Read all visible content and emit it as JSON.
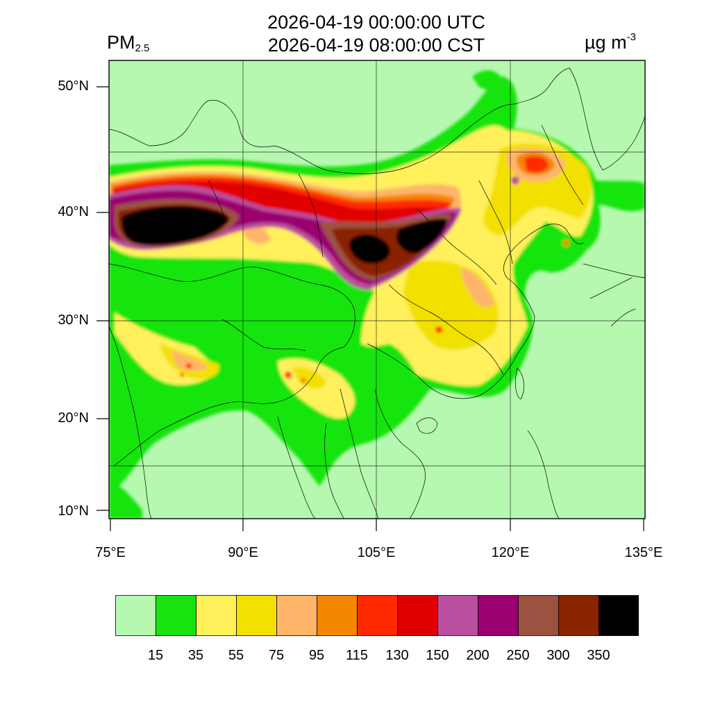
{
  "header": {
    "utc_time": "2026-04-19 00:00:00 UTC",
    "cst_time": "2026-04-19 08:00:00 CST",
    "variable_main": "PM",
    "variable_sub": "2.5",
    "unit_main": "µg m",
    "unit_sup": "-3"
  },
  "map": {
    "lat_labels": [
      "50°N",
      "40°N",
      "30°N",
      "20°N",
      "10°N"
    ],
    "lon_labels": [
      "75°E",
      "90°E",
      "105°E",
      "120°E",
      "135°E"
    ]
  },
  "legend": {
    "colors": [
      "#b6f8b0",
      "#17e40e",
      "#fff05c",
      "#f2e000",
      "#ffb569",
      "#f58600",
      "#ff2a00",
      "#e00000",
      "#bb4f9f",
      "#9a006f",
      "#9b5240",
      "#8a2400",
      "#000000"
    ],
    "labels": [
      "15",
      "35",
      "55",
      "75",
      "95",
      "115",
      "130",
      "150",
      "200",
      "250",
      "300",
      "350"
    ]
  }
}
